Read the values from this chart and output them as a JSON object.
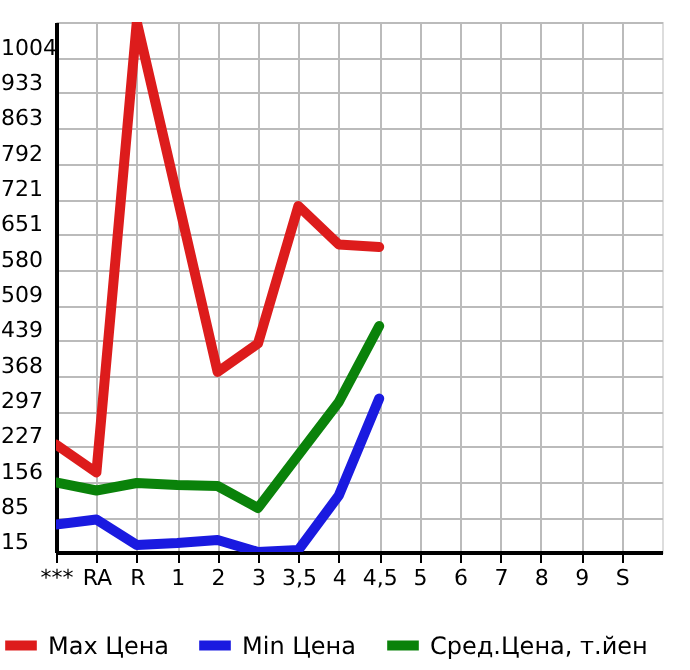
{
  "chart_data": {
    "type": "line",
    "categories": [
      "***",
      "RA",
      "R",
      "1",
      "2",
      "3",
      "3,5",
      "4",
      "4,5",
      "5",
      "6",
      "7",
      "8",
      "9",
      "S"
    ],
    "series": [
      {
        "name": "Max Цена",
        "color": "#dd1c1c",
        "values": [
          230,
          174,
          1075,
          726,
          375,
          432,
          707,
          630,
          625,
          null,
          null,
          null,
          null,
          null,
          null
        ]
      },
      {
        "name": "Min Цена",
        "color": "#1a1ae0",
        "values": [
          70,
          80,
          29,
          33,
          39,
          15,
          19,
          128,
          322,
          null,
          null,
          null,
          null,
          null,
          null
        ]
      },
      {
        "name": "Сред.Цена, т.йен",
        "color": "#0a820a",
        "values": [
          154,
          138,
          153,
          149,
          147,
          103,
          209,
          315,
          467,
          null,
          null,
          null,
          null,
          null,
          null
        ]
      }
    ],
    "ylim": [
      15,
      1075
    ],
    "yticks": [
      15,
      85,
      156,
      227,
      297,
      368,
      439,
      509,
      580,
      651,
      721,
      792,
      863,
      933,
      1004,
      {
        "value": 1075,
        "label": null
      }
    ],
    "grid": true,
    "legend": "bottom",
    "marker": "none",
    "line_style": "solid"
  }
}
